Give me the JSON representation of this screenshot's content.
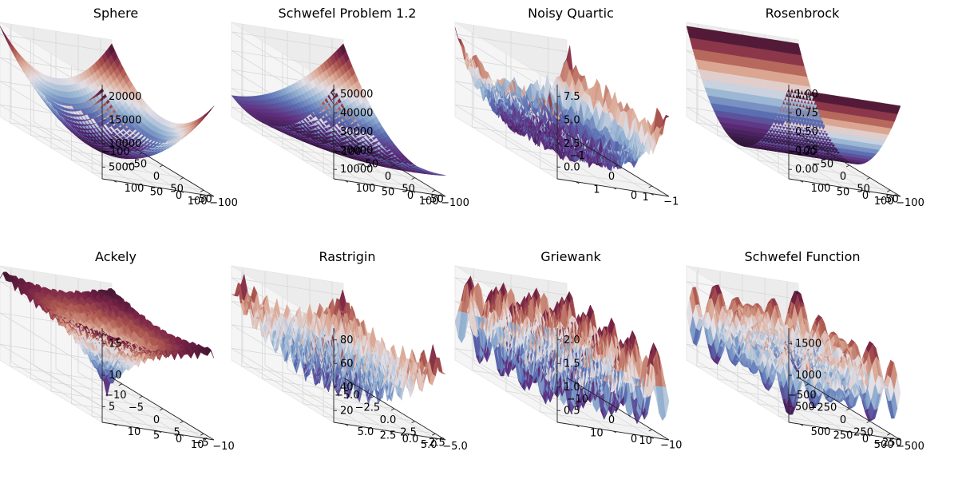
{
  "chart_data": [
    {
      "type": "surface3d",
      "title": "Sphere",
      "function": "sphere",
      "x_ticks": [
        "−100",
        "−50",
        "0",
        "50",
        "100"
      ],
      "y_ticks": [
        "−100",
        "−50",
        "0",
        "50",
        "100"
      ],
      "z_ticks": [
        "5000",
        "10000",
        "15000",
        "20000"
      ],
      "xlim": [
        -100,
        100
      ],
      "ylim": [
        -100,
        100
      ],
      "zlim": [
        0,
        20000
      ]
    },
    {
      "type": "surface3d",
      "title": "Schwefel Problem 1.2",
      "function": "schwefel12",
      "x_ticks": [
        "−100",
        "−50",
        "0",
        "50",
        "100"
      ],
      "y_ticks": [
        "−100",
        "−50",
        "0",
        "50",
        "100"
      ],
      "z_ticks": [
        "10000",
        "20000",
        "30000",
        "40000",
        "50000"
      ],
      "xlim": [
        -100,
        100
      ],
      "ylim": [
        -100,
        100
      ],
      "zlim": [
        0,
        50000
      ]
    },
    {
      "type": "surface3d",
      "title": "Noisy Quartic",
      "function": "noisy_quartic",
      "x_ticks": [
        "−1",
        "0",
        "1"
      ],
      "y_ticks": [
        "−1",
        "0",
        "1"
      ],
      "z_ticks": [
        "0.0",
        "2.5",
        "5.0",
        "7.5"
      ],
      "xlim": [
        -1.28,
        1.28
      ],
      "ylim": [
        -1.28,
        1.28
      ],
      "zlim": [
        -1,
        9
      ]
    },
    {
      "type": "surface3d",
      "title": "Rosenbrock",
      "function": "rosenbrock",
      "x_ticks": [
        "−100",
        "−50",
        "0",
        "50",
        "100"
      ],
      "y_ticks": [
        "−100",
        "−50",
        "0",
        "50",
        "100"
      ],
      "z_ticks": [
        "0.00",
        "0.25",
        "0.50",
        "0.75",
        "1.00"
      ],
      "xlim": [
        -100,
        100
      ],
      "ylim": [
        -100,
        100
      ],
      "zlim": [
        0,
        1
      ]
    },
    {
      "type": "surface3d",
      "title": "Ackely",
      "function": "ackley",
      "x_ticks": [
        "−10",
        "−5",
        "0",
        "5",
        "10"
      ],
      "y_ticks": [
        "−10",
        "−5",
        "0",
        "5",
        "10"
      ],
      "z_ticks": [
        "5",
        "10",
        "15"
      ],
      "xlim": [
        -10,
        10
      ],
      "ylim": [
        -10,
        10
      ],
      "zlim": [
        0,
        20
      ]
    },
    {
      "type": "surface3d",
      "title": "Rastrigin",
      "function": "rastrigin",
      "x_ticks": [
        "−5.0",
        "−2.5",
        "0.0",
        "2.5",
        "5.0"
      ],
      "y_ticks": [
        "−5.0",
        "−2.5",
        "0.0",
        "2.5",
        "5.0"
      ],
      "z_ticks": [
        "20",
        "40",
        "60",
        "80"
      ],
      "xlim": [
        -5.12,
        5.12
      ],
      "ylim": [
        -5.12,
        5.12
      ],
      "zlim": [
        0,
        80
      ]
    },
    {
      "type": "surface3d",
      "title": "Griewank",
      "function": "griewank",
      "x_ticks": [
        "−10",
        "0",
        "10"
      ],
      "y_ticks": [
        "−10",
        "0",
        "10"
      ],
      "z_ticks": [
        "0.5",
        "1.0",
        "1.5",
        "2.0"
      ],
      "xlim": [
        -15,
        15
      ],
      "ylim": [
        -15,
        15
      ],
      "zlim": [
        0,
        2
      ]
    },
    {
      "type": "surface3d",
      "title": "Schwefel Function",
      "function": "schwefel",
      "x_ticks": [
        "−500",
        "−250",
        "0",
        "250",
        "500"
      ],
      "y_ticks": [
        "−500",
        "−250",
        "0",
        "250",
        "500"
      ],
      "z_ticks": [
        "500",
        "1000",
        "1500"
      ],
      "xlim": [
        -500,
        500
      ],
      "ylim": [
        -500,
        500
      ],
      "zlim": [
        0,
        1700
      ]
    }
  ]
}
